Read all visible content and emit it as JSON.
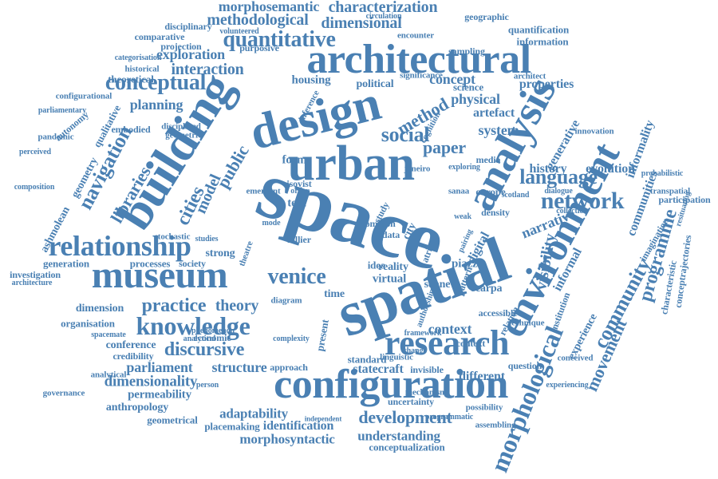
{
  "cloud": {
    "color": "#4a80b3",
    "words": [
      "space",
      "spatial",
      "urban",
      "design",
      "building",
      "architectural",
      "configuration",
      "analysis",
      "environment",
      "museum",
      "research",
      "relationship",
      "knowledge",
      "conceptual",
      "navigation",
      "venice",
      "social",
      "quantitative",
      "morphological",
      "network",
      "language",
      "paper",
      "practice",
      "discursive",
      "community",
      "programme",
      "movement",
      "dimensional",
      "methodological",
      "characterization",
      "morphosemantic",
      "development",
      "libraries",
      "cities",
      "model",
      "public",
      "form",
      "method",
      "concept",
      "system",
      "theory",
      "structure",
      "parliament",
      "context",
      "visibility",
      "informal",
      "narrative",
      "generative",
      "experience",
      "interaction",
      "planning",
      "exploration",
      "history",
      "evolution",
      "informality",
      "communities",
      "physical",
      "artefact",
      "properties",
      "europe",
      "adaptability",
      "identification",
      "morphosyntactic",
      "understanding",
      "conceptualization",
      "dimensionality",
      "permeability",
      "anthropology",
      "geometrical",
      "placemaking",
      "statecraft",
      "invisible",
      "different",
      "question",
      "conference",
      "credibility",
      "analytical",
      "organisation",
      "dimension",
      "generation",
      "investigation",
      "architecture",
      "processes",
      "society",
      "strong",
      "studies",
      "stochastic",
      "ashmolean",
      "geometry",
      "qualitative",
      "autonomy",
      "pandemic",
      "embodied",
      "disciplined",
      "geometric",
      "theoretical",
      "historical",
      "comparative",
      "projection",
      "purposive",
      "disciplinary",
      "volunteered",
      "quantification",
      "geographic",
      "information",
      "sampling",
      "encounter",
      "circulation",
      "significance",
      "architect",
      "political",
      "housing",
      "inference",
      "science",
      "cognition",
      "media",
      "density",
      "relation",
      "technique",
      "institution",
      "imagination",
      "characteristic",
      "conceptrajectories",
      "participation",
      "transpatial",
      "probabilistic",
      "resituating",
      "virtual",
      "reality",
      "time",
      "text",
      "order",
      "isovist",
      "theatre",
      "data",
      "study",
      "city",
      "atria",
      "digital",
      "piazza",
      "soane",
      "scarpa",
      "pattern",
      "accessible",
      "authorship",
      "pairing",
      "exploring",
      "governance",
      "person",
      "economic",
      "complexity",
      "phenomenon",
      "diagram",
      "present",
      "framework",
      "linguistic",
      "mechanism",
      "uncertainty",
      "possibility",
      "programmatic",
      "assembling",
      "experiencing",
      "conceived",
      "independent",
      "categorisation",
      "configurational",
      "parliamentary",
      "composition",
      "perceived",
      "spacemate",
      "emergent",
      "hillier",
      "idea",
      "common",
      "janeiro",
      "scotland",
      "sanaa",
      "change",
      "approach",
      "standard",
      "weak",
      "collection",
      "dialogue",
      "innovation",
      "context",
      "analytical",
      "mode"
    ],
    "layout_note_omitted": true
  }
}
